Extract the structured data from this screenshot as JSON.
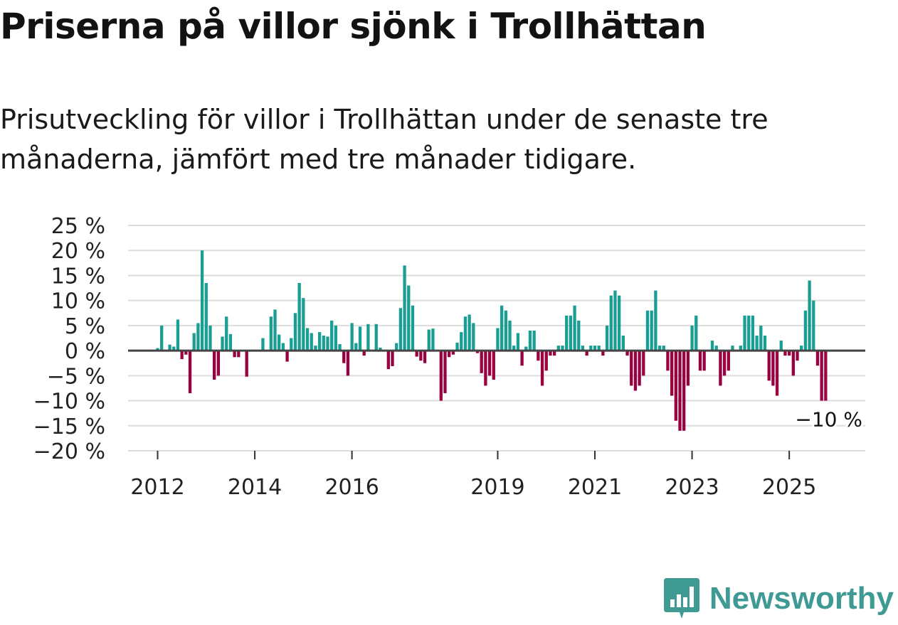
{
  "title": "Priserna på villor sjönk i Trollhättan",
  "subtitle": "Prisutveckling för villor i Trollhättan under de senaste tre månaderna, jämfört med tre månader tidigare.",
  "brand": {
    "name": "Newsworthy",
    "icon": "bar-chart-flag-icon"
  },
  "colors": {
    "positive": "#199e94",
    "negative": "#99003f",
    "grid": "#dddddd",
    "zero_line": "#444444",
    "brand": "#3f9a94"
  },
  "chart_data": {
    "type": "bar",
    "title": "Priserna på villor sjönk i Trollhättan",
    "ylabel": "",
    "xlabel": "",
    "ylim": [
      -20,
      25
    ],
    "yticks": [
      25,
      20,
      15,
      10,
      5,
      0,
      -5,
      -10,
      -15,
      -20
    ],
    "ytick_labels": [
      "25 %",
      "20 %",
      "15 %",
      "10 %",
      "5 %",
      "0 %",
      "−5 %",
      "−10 %",
      "−15 %",
      "−20 %"
    ],
    "xticks": [
      {
        "label": "2012",
        "month": 0
      },
      {
        "label": "2014",
        "month": 24
      },
      {
        "label": "2016",
        "month": 48
      },
      {
        "label": "2019",
        "month": 84
      },
      {
        "label": "2021",
        "month": 108
      },
      {
        "label": "2023",
        "month": 132
      },
      {
        "label": "2025",
        "month": 156
      }
    ],
    "x_start": "2012-01",
    "x_unit": "month",
    "last_value_label": "−10 %",
    "values": [
      0.5,
      5,
      0,
      1.2,
      0.8,
      6.2,
      -1.7,
      -0.8,
      -8.5,
      3.5,
      5.5,
      20,
      13.5,
      5,
      -5.8,
      -5,
      2.8,
      6.8,
      3.3,
      -1.3,
      -1.3,
      0,
      -5.2,
      0,
      0,
      0,
      2.5,
      0,
      6.8,
      8.2,
      3.2,
      1.5,
      -2.2,
      2.5,
      7.5,
      13.5,
      10.5,
      4.5,
      3.5,
      1,
      3.7,
      3,
      2.8,
      6,
      5,
      1.3,
      -2.5,
      -5,
      5.5,
      1.5,
      4.8,
      -1,
      5.3,
      0,
      5.3,
      0.6,
      0,
      -3.7,
      -3.1,
      1.5,
      8.5,
      17,
      13,
      9,
      -1.2,
      -2,
      -2.5,
      4.2,
      4.4,
      0,
      -10,
      -8.5,
      -1.3,
      -0.8,
      1.6,
      3.7,
      6.8,
      7.2,
      5.5,
      -0.5,
      -4.5,
      -7,
      -5,
      -5.8,
      4.5,
      9,
      8,
      6,
      1,
      3.5,
      -3,
      0.8,
      4,
      4,
      -2,
      -7,
      -4,
      -1,
      -1,
      1,
      1,
      7,
      7,
      9,
      6,
      1,
      -1,
      1,
      1,
      1,
      -1,
      5,
      11,
      12,
      11,
      3,
      -1,
      -7,
      -8,
      -7,
      -5,
      8,
      8,
      12,
      1,
      1,
      -4,
      -9,
      -14,
      -16,
      -16,
      -7,
      5,
      7,
      -4,
      -4,
      0,
      2,
      1,
      -7,
      -5,
      -4,
      1,
      0,
      1,
      7,
      7,
      7,
      3,
      5,
      3,
      -6,
      -7,
      -9,
      2,
      -1,
      -1,
      -5,
      -2,
      1,
      8,
      14,
      10,
      -3,
      -10,
      -10
    ]
  }
}
